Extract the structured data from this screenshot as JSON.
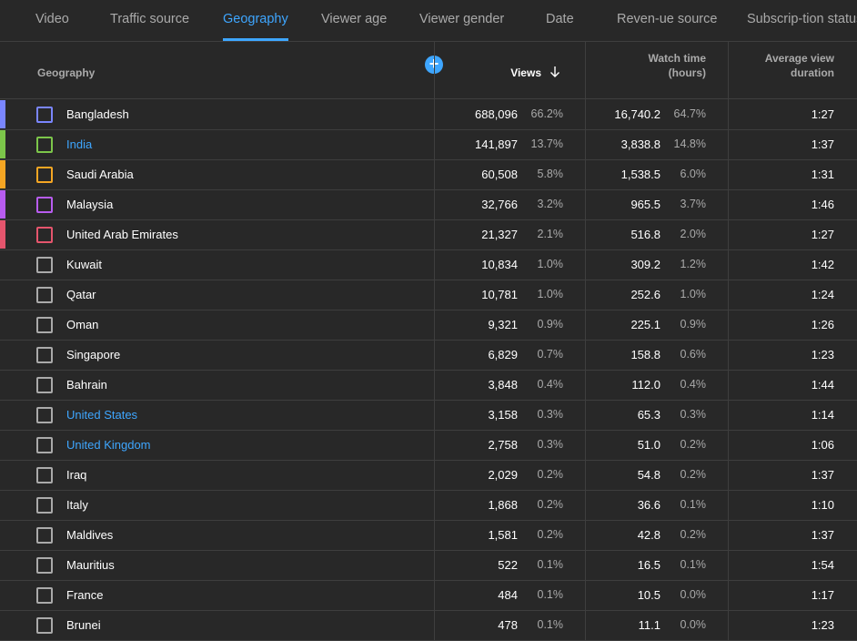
{
  "tabs": [
    "Video",
    "Traffic source",
    "Geography",
    "Viewer age",
    "Viewer gender",
    "Date",
    "Reven-ue source",
    "Subscrip-tion status"
  ],
  "active_tab": "Geography",
  "columns": {
    "geography": "Geography",
    "views": "Views",
    "sort_icon": "arrow-down",
    "watch_time_line1": "Watch time",
    "watch_time_line2": "(hours)",
    "avd_line1": "Average view",
    "avd_line2": "duration"
  },
  "add_metric_icon": "plus-circle",
  "colors": {
    "accent": "#3ea6ff",
    "background": "#282828",
    "series": [
      "#7a86ff",
      "#7cc64a",
      "#f5a623",
      "#b85cf0",
      "#e5556d"
    ]
  },
  "rows": [
    {
      "name": "Bangladesh",
      "views": "688,096",
      "views_pct": "66.2%",
      "watch": "16,740.2",
      "watch_pct": "64.7%",
      "avd": "1:27",
      "color": "#7a86ff",
      "link": false
    },
    {
      "name": "India",
      "views": "141,897",
      "views_pct": "13.7%",
      "watch": "3,838.8",
      "watch_pct": "14.8%",
      "avd": "1:37",
      "color": "#7cc64a",
      "link": true
    },
    {
      "name": "Saudi Arabia",
      "views": "60,508",
      "views_pct": "5.8%",
      "watch": "1,538.5",
      "watch_pct": "6.0%",
      "avd": "1:31",
      "color": "#f5a623",
      "link": false
    },
    {
      "name": "Malaysia",
      "views": "32,766",
      "views_pct": "3.2%",
      "watch": "965.5",
      "watch_pct": "3.7%",
      "avd": "1:46",
      "color": "#b85cf0",
      "link": false
    },
    {
      "name": "United Arab Emirates",
      "views": "21,327",
      "views_pct": "2.1%",
      "watch": "516.8",
      "watch_pct": "2.0%",
      "avd": "1:27",
      "color": "#e5556d",
      "link": false
    },
    {
      "name": "Kuwait",
      "views": "10,834",
      "views_pct": "1.0%",
      "watch": "309.2",
      "watch_pct": "1.2%",
      "avd": "1:42",
      "color": null,
      "link": false
    },
    {
      "name": "Qatar",
      "views": "10,781",
      "views_pct": "1.0%",
      "watch": "252.6",
      "watch_pct": "1.0%",
      "avd": "1:24",
      "color": null,
      "link": false
    },
    {
      "name": "Oman",
      "views": "9,321",
      "views_pct": "0.9%",
      "watch": "225.1",
      "watch_pct": "0.9%",
      "avd": "1:26",
      "color": null,
      "link": false
    },
    {
      "name": "Singapore",
      "views": "6,829",
      "views_pct": "0.7%",
      "watch": "158.8",
      "watch_pct": "0.6%",
      "avd": "1:23",
      "color": null,
      "link": false
    },
    {
      "name": "Bahrain",
      "views": "3,848",
      "views_pct": "0.4%",
      "watch": "112.0",
      "watch_pct": "0.4%",
      "avd": "1:44",
      "color": null,
      "link": false
    },
    {
      "name": "United States",
      "views": "3,158",
      "views_pct": "0.3%",
      "watch": "65.3",
      "watch_pct": "0.3%",
      "avd": "1:14",
      "color": null,
      "link": true
    },
    {
      "name": "United Kingdom",
      "views": "2,758",
      "views_pct": "0.3%",
      "watch": "51.0",
      "watch_pct": "0.2%",
      "avd": "1:06",
      "color": null,
      "link": true
    },
    {
      "name": "Iraq",
      "views": "2,029",
      "views_pct": "0.2%",
      "watch": "54.8",
      "watch_pct": "0.2%",
      "avd": "1:37",
      "color": null,
      "link": false
    },
    {
      "name": "Italy",
      "views": "1,868",
      "views_pct": "0.2%",
      "watch": "36.6",
      "watch_pct": "0.1%",
      "avd": "1:10",
      "color": null,
      "link": false
    },
    {
      "name": "Maldives",
      "views": "1,581",
      "views_pct": "0.2%",
      "watch": "42.8",
      "watch_pct": "0.2%",
      "avd": "1:37",
      "color": null,
      "link": false
    },
    {
      "name": "Mauritius",
      "views": "522",
      "views_pct": "0.1%",
      "watch": "16.5",
      "watch_pct": "0.1%",
      "avd": "1:54",
      "color": null,
      "link": false
    },
    {
      "name": "France",
      "views": "484",
      "views_pct": "0.1%",
      "watch": "10.5",
      "watch_pct": "0.0%",
      "avd": "1:17",
      "color": null,
      "link": false
    },
    {
      "name": "Brunei",
      "views": "478",
      "views_pct": "0.1%",
      "watch": "11.1",
      "watch_pct": "0.0%",
      "avd": "1:23",
      "color": null,
      "link": false
    }
  ]
}
